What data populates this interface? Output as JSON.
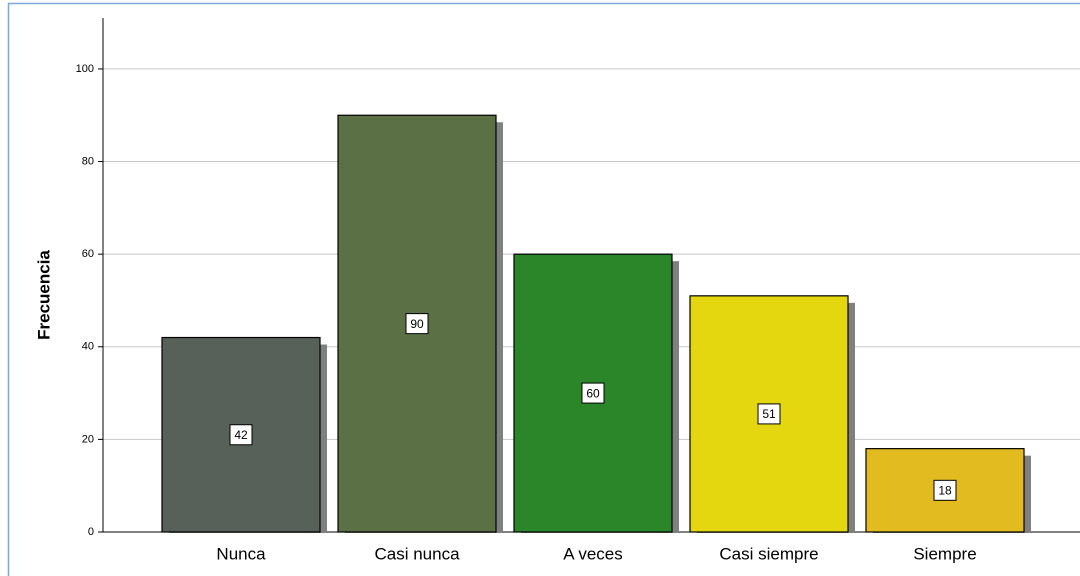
{
  "chart_data": {
    "type": "bar",
    "y_label": "Frecuencia",
    "categories": [
      "Nunca",
      "Casi nunca",
      "A veces",
      "Casi siempre",
      "Siempre"
    ],
    "values": [
      42,
      90,
      60,
      51,
      18
    ],
    "colors": [
      "#576059",
      "#5c7045",
      "#2b8629",
      "#e4d710",
      "#e1bb20"
    ],
    "ylim": [
      0,
      111
    ],
    "yticks": [
      0,
      20,
      40,
      60,
      80,
      100
    ],
    "grid": true
  }
}
